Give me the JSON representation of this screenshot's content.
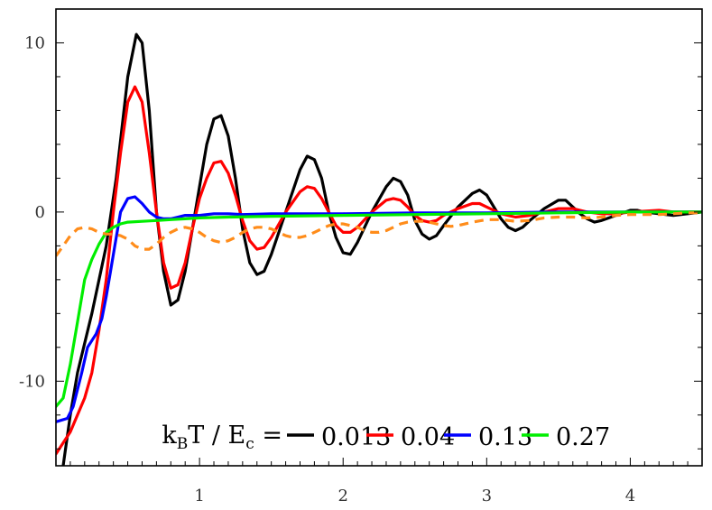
{
  "chart_data": {
    "type": "line",
    "title": "",
    "xlabel": "",
    "ylabel": "",
    "xlim": [
      0,
      4.5
    ],
    "ylim": [
      -15,
      12
    ],
    "x_ticks": [
      1,
      2,
      3,
      4
    ],
    "x_tick_labels": [
      "1",
      "2",
      "3",
      "4"
    ],
    "y_ticks": [
      10,
      0,
      -10
    ],
    "y_tick_labels": [
      "10",
      "0",
      "-10"
    ],
    "grid": false,
    "legend": {
      "placement": "bottom-right",
      "prefix": {
        "k": "k",
        "k_sub": "B",
        "mid": "T / E",
        "e_sub": "c",
        "eq": " ="
      },
      "entries": [
        {
          "label": "0.013",
          "color": "#000000"
        },
        {
          "label": "0.04",
          "color": "#ff0000"
        },
        {
          "label": "0.13",
          "color": "#0000ff"
        },
        {
          "label": "0.27",
          "color": "#00ee00"
        }
      ]
    },
    "series": [
      {
        "name": "0.013",
        "color": "#000000",
        "dashed": false,
        "points": [
          [
            0.05,
            -15
          ],
          [
            0.1,
            -12
          ],
          [
            0.15,
            -9.5
          ],
          [
            0.25,
            -6
          ],
          [
            0.35,
            -2
          ],
          [
            0.42,
            2
          ],
          [
            0.5,
            8
          ],
          [
            0.56,
            10.5
          ],
          [
            0.6,
            10
          ],
          [
            0.65,
            6
          ],
          [
            0.7,
            0
          ],
          [
            0.75,
            -3.5
          ],
          [
            0.8,
            -5.5
          ],
          [
            0.85,
            -5.2
          ],
          [
            0.9,
            -3.5
          ],
          [
            0.95,
            -1
          ],
          [
            1.0,
            1.5
          ],
          [
            1.05,
            4
          ],
          [
            1.1,
            5.5
          ],
          [
            1.15,
            5.7
          ],
          [
            1.2,
            4.5
          ],
          [
            1.25,
            2
          ],
          [
            1.3,
            -1
          ],
          [
            1.35,
            -3
          ],
          [
            1.4,
            -3.7
          ],
          [
            1.45,
            -3.5
          ],
          [
            1.5,
            -2.5
          ],
          [
            1.6,
            0
          ],
          [
            1.7,
            2.5
          ],
          [
            1.75,
            3.3
          ],
          [
            1.8,
            3.1
          ],
          [
            1.85,
            2
          ],
          [
            1.9,
            0
          ],
          [
            1.95,
            -1.5
          ],
          [
            2.0,
            -2.4
          ],
          [
            2.05,
            -2.5
          ],
          [
            2.1,
            -1.8
          ],
          [
            2.2,
            0
          ],
          [
            2.3,
            1.5
          ],
          [
            2.35,
            2
          ],
          [
            2.4,
            1.8
          ],
          [
            2.45,
            1
          ],
          [
            2.5,
            -0.5
          ],
          [
            2.55,
            -1.3
          ],
          [
            2.6,
            -1.6
          ],
          [
            2.65,
            -1.4
          ],
          [
            2.7,
            -0.8
          ],
          [
            2.8,
            0.3
          ],
          [
            2.9,
            1.1
          ],
          [
            2.95,
            1.3
          ],
          [
            3.0,
            1
          ],
          [
            3.05,
            0.3
          ],
          [
            3.1,
            -0.4
          ],
          [
            3.15,
            -0.9
          ],
          [
            3.2,
            -1.1
          ],
          [
            3.25,
            -0.9
          ],
          [
            3.3,
            -0.5
          ],
          [
            3.4,
            0.2
          ],
          [
            3.5,
            0.7
          ],
          [
            3.55,
            0.7
          ],
          [
            3.6,
            0.3
          ],
          [
            3.65,
            -0.1
          ],
          [
            3.7,
            -0.4
          ],
          [
            3.75,
            -0.6
          ],
          [
            3.8,
            -0.5
          ],
          [
            3.9,
            -0.2
          ],
          [
            4.0,
            0.1
          ],
          [
            4.05,
            0.1
          ],
          [
            4.1,
            0
          ],
          [
            4.2,
            -0.1
          ],
          [
            4.3,
            -0.2
          ],
          [
            4.4,
            -0.1
          ],
          [
            4.5,
            0
          ]
        ]
      },
      {
        "name": "0.04",
        "color": "#ff0000",
        "dashed": false,
        "points": [
          [
            0,
            -14.3
          ],
          [
            0.1,
            -13
          ],
          [
            0.2,
            -11
          ],
          [
            0.25,
            -9.5
          ],
          [
            0.3,
            -7
          ],
          [
            0.35,
            -4
          ],
          [
            0.4,
            0
          ],
          [
            0.45,
            3.5
          ],
          [
            0.5,
            6.5
          ],
          [
            0.55,
            7.4
          ],
          [
            0.6,
            6.5
          ],
          [
            0.65,
            3.5
          ],
          [
            0.7,
            0
          ],
          [
            0.75,
            -3
          ],
          [
            0.8,
            -4.5
          ],
          [
            0.85,
            -4.3
          ],
          [
            0.9,
            -3
          ],
          [
            0.95,
            -1
          ],
          [
            1.0,
            0.8
          ],
          [
            1.05,
            2
          ],
          [
            1.1,
            2.9
          ],
          [
            1.15,
            3
          ],
          [
            1.2,
            2.3
          ],
          [
            1.25,
            1
          ],
          [
            1.3,
            -0.5
          ],
          [
            1.35,
            -1.7
          ],
          [
            1.4,
            -2.2
          ],
          [
            1.45,
            -2.1
          ],
          [
            1.5,
            -1.5
          ],
          [
            1.6,
            0
          ],
          [
            1.7,
            1.2
          ],
          [
            1.75,
            1.5
          ],
          [
            1.8,
            1.4
          ],
          [
            1.85,
            0.8
          ],
          [
            1.9,
            0
          ],
          [
            1.95,
            -0.8
          ],
          [
            2.0,
            -1.2
          ],
          [
            2.05,
            -1.2
          ],
          [
            2.1,
            -0.9
          ],
          [
            2.2,
            0
          ],
          [
            2.3,
            0.7
          ],
          [
            2.35,
            0.8
          ],
          [
            2.4,
            0.7
          ],
          [
            2.45,
            0.3
          ],
          [
            2.5,
            -0.2
          ],
          [
            2.55,
            -0.5
          ],
          [
            2.6,
            -0.6
          ],
          [
            2.65,
            -0.5
          ],
          [
            2.7,
            -0.2
          ],
          [
            2.8,
            0.2
          ],
          [
            2.9,
            0.5
          ],
          [
            2.95,
            0.5
          ],
          [
            3.0,
            0.3
          ],
          [
            3.1,
            -0.1
          ],
          [
            3.2,
            -0.3
          ],
          [
            3.3,
            -0.2
          ],
          [
            3.4,
            0
          ],
          [
            3.5,
            0.2
          ],
          [
            3.6,
            0.2
          ],
          [
            3.7,
            0
          ],
          [
            3.8,
            -0.1
          ],
          [
            3.9,
            -0.1
          ],
          [
            4.0,
            0
          ],
          [
            4.2,
            0.1
          ],
          [
            4.3,
            0
          ],
          [
            4.5,
            0
          ]
        ]
      },
      {
        "name": "0.13",
        "color": "#0000ff",
        "dashed": false,
        "points": [
          [
            0,
            -12.4
          ],
          [
            0.08,
            -12.2
          ],
          [
            0.12,
            -11.5
          ],
          [
            0.18,
            -9.5
          ],
          [
            0.22,
            -8
          ],
          [
            0.25,
            -7.6
          ],
          [
            0.28,
            -7.2
          ],
          [
            0.32,
            -6.3
          ],
          [
            0.35,
            -5
          ],
          [
            0.38,
            -3.5
          ],
          [
            0.42,
            -1.5
          ],
          [
            0.45,
            0
          ],
          [
            0.5,
            0.8
          ],
          [
            0.55,
            0.9
          ],
          [
            0.6,
            0.5
          ],
          [
            0.65,
            0
          ],
          [
            0.7,
            -0.3
          ],
          [
            0.75,
            -0.4
          ],
          [
            0.8,
            -0.4
          ],
          [
            0.85,
            -0.3
          ],
          [
            0.9,
            -0.2
          ],
          [
            1.0,
            -0.2
          ],
          [
            1.1,
            -0.1
          ],
          [
            1.2,
            -0.1
          ],
          [
            1.3,
            -0.15
          ],
          [
            1.5,
            -0.1
          ],
          [
            2.0,
            -0.1
          ],
          [
            2.5,
            -0.05
          ],
          [
            3.0,
            -0.05
          ],
          [
            3.5,
            0
          ],
          [
            4.5,
            0
          ]
        ]
      },
      {
        "name": "0.27",
        "color": "#00ee00",
        "dashed": false,
        "points": [
          [
            0,
            -11.5
          ],
          [
            0.05,
            -11
          ],
          [
            0.1,
            -9
          ],
          [
            0.15,
            -6.5
          ],
          [
            0.2,
            -4
          ],
          [
            0.25,
            -2.8
          ],
          [
            0.3,
            -1.9
          ],
          [
            0.35,
            -1.2
          ],
          [
            0.4,
            -0.9
          ],
          [
            0.45,
            -0.7
          ],
          [
            0.5,
            -0.6
          ],
          [
            0.6,
            -0.55
          ],
          [
            0.7,
            -0.5
          ],
          [
            0.8,
            -0.45
          ],
          [
            0.9,
            -0.4
          ],
          [
            1.0,
            -0.35
          ],
          [
            1.2,
            -0.3
          ],
          [
            1.5,
            -0.25
          ],
          [
            2.0,
            -0.2
          ],
          [
            2.5,
            -0.15
          ],
          [
            3.0,
            -0.1
          ],
          [
            3.5,
            -0.05
          ],
          [
            4.0,
            0
          ],
          [
            4.5,
            0
          ]
        ]
      },
      {
        "color": "#ff8c1a",
        "dashed": true,
        "points": [
          [
            0,
            -2.6
          ],
          [
            0.05,
            -2
          ],
          [
            0.1,
            -1.4
          ],
          [
            0.15,
            -1
          ],
          [
            0.2,
            -0.9
          ],
          [
            0.25,
            -1
          ],
          [
            0.3,
            -1.2
          ],
          [
            0.35,
            -1.3
          ],
          [
            0.4,
            -1.3
          ],
          [
            0.45,
            -1.4
          ],
          [
            0.5,
            -1.6
          ],
          [
            0.55,
            -2
          ],
          [
            0.6,
            -2.2
          ],
          [
            0.65,
            -2.2
          ],
          [
            0.7,
            -1.9
          ],
          [
            0.75,
            -1.5
          ],
          [
            0.8,
            -1.2
          ],
          [
            0.85,
            -1
          ],
          [
            0.9,
            -0.9
          ],
          [
            0.95,
            -1
          ],
          [
            1.0,
            -1.2
          ],
          [
            1.05,
            -1.5
          ],
          [
            1.1,
            -1.7
          ],
          [
            1.15,
            -1.8
          ],
          [
            1.2,
            -1.7
          ],
          [
            1.25,
            -1.5
          ],
          [
            1.3,
            -1.2
          ],
          [
            1.35,
            -1
          ],
          [
            1.4,
            -0.9
          ],
          [
            1.45,
            -0.9
          ],
          [
            1.5,
            -1
          ],
          [
            1.55,
            -1.2
          ],
          [
            1.6,
            -1.4
          ],
          [
            1.65,
            -1.5
          ],
          [
            1.7,
            -1.5
          ],
          [
            1.75,
            -1.4
          ],
          [
            1.8,
            -1.2
          ],
          [
            1.85,
            -1
          ],
          [
            1.9,
            -0.8
          ],
          [
            1.95,
            -0.7
          ],
          [
            2.0,
            -0.7
          ],
          [
            2.05,
            -0.8
          ],
          [
            2.1,
            -0.9
          ],
          [
            2.15,
            -1.1
          ],
          [
            2.2,
            -1.2
          ],
          [
            2.25,
            -1.2
          ],
          [
            2.3,
            -1.1
          ],
          [
            2.35,
            -0.9
          ],
          [
            2.4,
            -0.7
          ],
          [
            2.45,
            -0.6
          ],
          [
            2.5,
            -0.55
          ],
          [
            2.55,
            -0.55
          ],
          [
            2.6,
            -0.6
          ],
          [
            2.7,
            -0.8
          ],
          [
            2.75,
            -0.85
          ],
          [
            2.8,
            -0.8
          ],
          [
            2.9,
            -0.6
          ],
          [
            3.0,
            -0.45
          ],
          [
            3.1,
            -0.45
          ],
          [
            3.2,
            -0.55
          ],
          [
            3.3,
            -0.5
          ],
          [
            3.4,
            -0.35
          ],
          [
            3.5,
            -0.3
          ],
          [
            3.6,
            -0.3
          ],
          [
            3.7,
            -0.35
          ],
          [
            3.8,
            -0.3
          ],
          [
            3.9,
            -0.2
          ],
          [
            4.0,
            -0.15
          ],
          [
            4.1,
            -0.15
          ],
          [
            4.2,
            -0.15
          ],
          [
            4.3,
            -0.1
          ],
          [
            4.4,
            -0.05
          ],
          [
            4.5,
            -0.05
          ]
        ]
      }
    ]
  }
}
